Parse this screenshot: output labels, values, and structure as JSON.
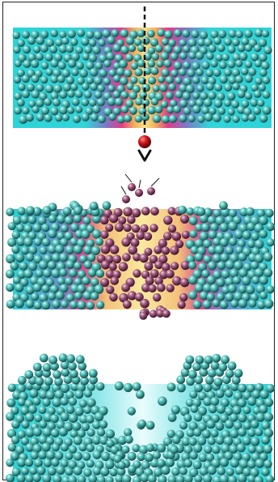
{
  "figure": {
    "panels": [
      {
        "name": "panel-before-impact",
        "state": "intact surface with incoming projectile"
      },
      {
        "name": "panel-impact",
        "state": "heated track with ejected atoms"
      },
      {
        "name": "panel-after",
        "state": "crater with surface rims"
      }
    ],
    "colors": {
      "substrate": "#2ad4d8",
      "hot_core": "#f7e08a",
      "hot_ring": "#e23a8a",
      "warm": "#8a6fc8",
      "atom_cold": "#2fa7a3",
      "atom_hot": "#8a3560",
      "projectile": "#c8141c",
      "trajectory": "#111111"
    },
    "icons": [
      "projectile-icon",
      "trajectory-arrow-icon",
      "ejected-atom-icon"
    ]
  }
}
